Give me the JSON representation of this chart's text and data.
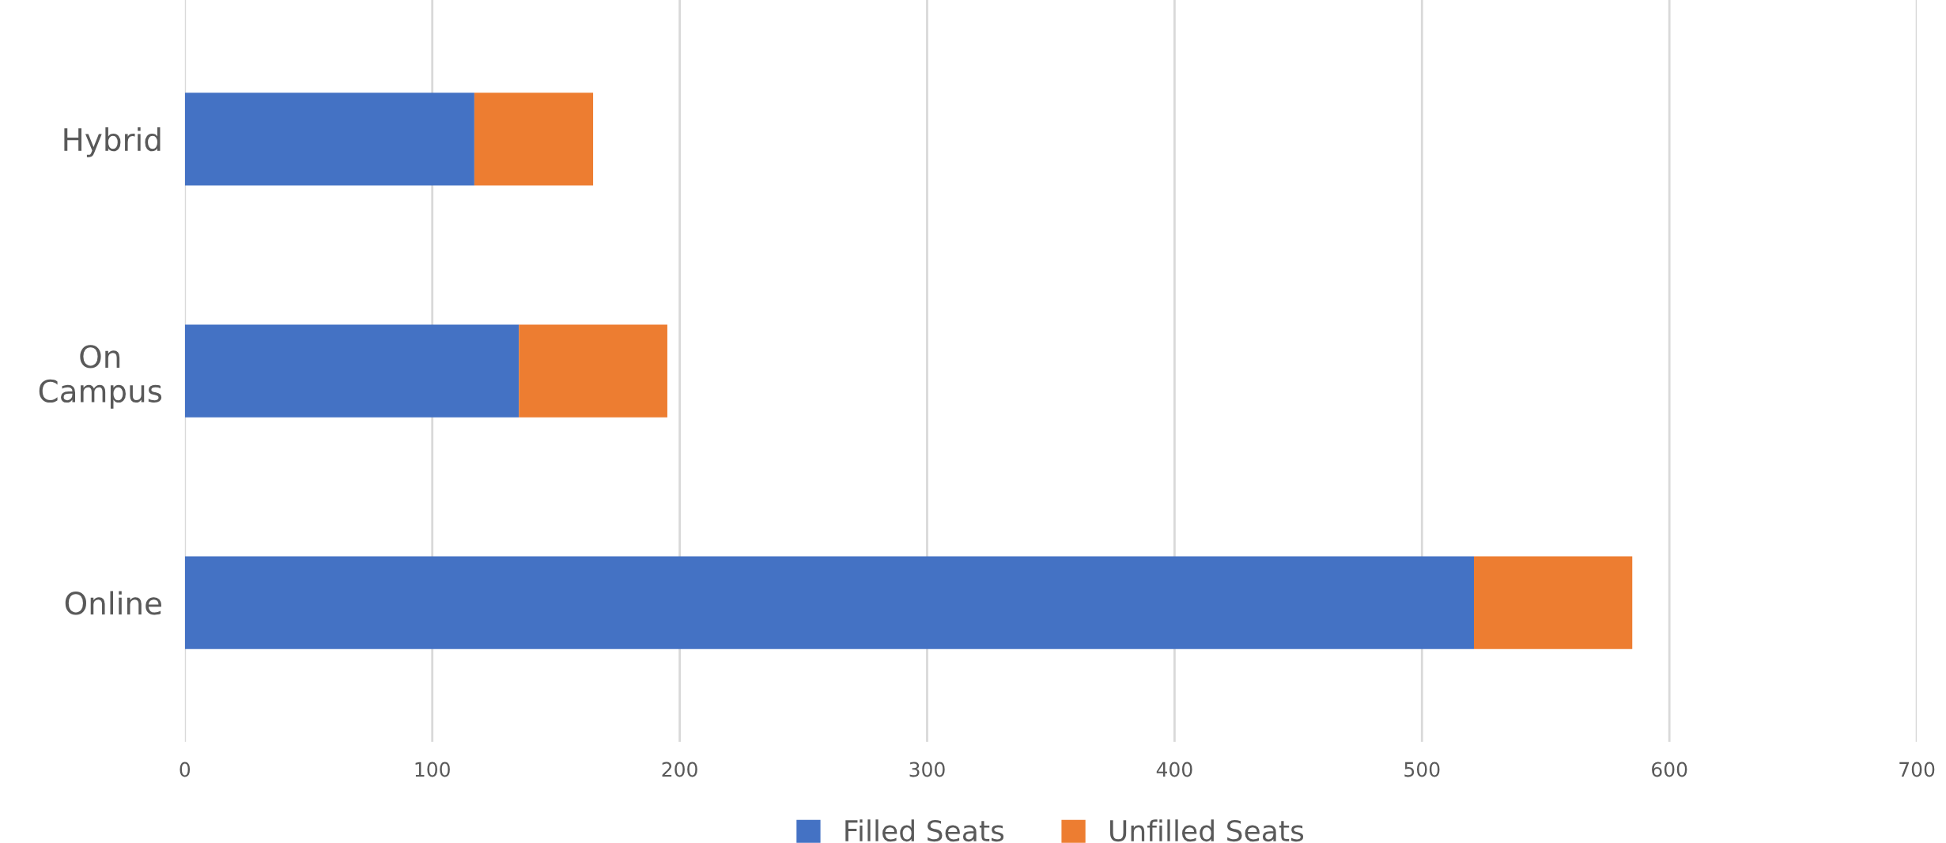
{
  "chart_data": {
    "type": "bar",
    "orientation": "horizontal",
    "stacked": true,
    "categories": [
      "Hybrid",
      "On Campus",
      "Online"
    ],
    "series": [
      {
        "name": "Filled Seats",
        "color": "#4472c4",
        "values": [
          117,
          135,
          521
        ]
      },
      {
        "name": "Unfilled Seats",
        "color": "#ed7d31",
        "values": [
          48,
          60,
          64
        ]
      }
    ],
    "xlim": [
      0,
      700
    ],
    "xticks": [
      0,
      100,
      200,
      300,
      400,
      500,
      600,
      700
    ],
    "grid": "x",
    "legend": "bottom"
  }
}
